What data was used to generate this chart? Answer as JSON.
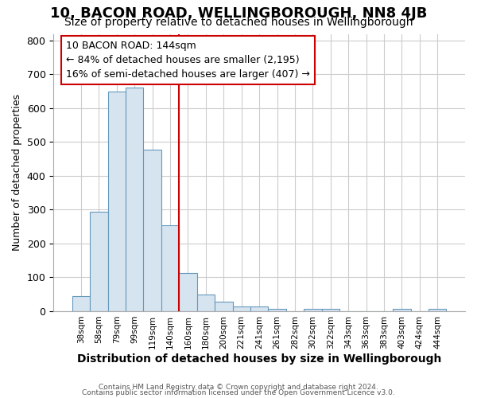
{
  "title": "10, BACON ROAD, WELLINGBOROUGH, NN8 4JB",
  "subtitle": "Size of property relative to detached houses in Wellingborough",
  "xlabel": "Distribution of detached houses by size in Wellingborough",
  "ylabel": "Number of detached properties",
  "footer_line1": "Contains HM Land Registry data © Crown copyright and database right 2024.",
  "footer_line2": "Contains public sector information licensed under the Open Government Licence v3.0.",
  "bin_labels": [
    "38sqm",
    "58sqm",
    "79sqm",
    "99sqm",
    "119sqm",
    "140sqm",
    "160sqm",
    "180sqm",
    "200sqm",
    "221sqm",
    "241sqm",
    "261sqm",
    "282sqm",
    "302sqm",
    "322sqm",
    "343sqm",
    "363sqm",
    "383sqm",
    "403sqm",
    "424sqm",
    "444sqm"
  ],
  "bar_values": [
    45,
    295,
    650,
    660,
    478,
    253,
    113,
    50,
    27,
    15,
    15,
    8,
    0,
    8,
    8,
    0,
    0,
    0,
    8,
    0,
    8
  ],
  "bar_color": "#d6e4f0",
  "bar_edge_color": "#6699bb",
  "vline_x_index": 5.5,
  "vline_color": "#cc0000",
  "annotation_line1": "10 BACON ROAD: 144sqm",
  "annotation_line2": "← 84% of detached houses are smaller (2,195)",
  "annotation_line3": "16% of semi-detached houses are larger (407) →",
  "annotation_box_color": "#ffffff",
  "annotation_box_edge_color": "#cc0000",
  "ylim": [
    0,
    820
  ],
  "yticks": [
    0,
    100,
    200,
    300,
    400,
    500,
    600,
    700,
    800
  ],
  "grid_color": "#cccccc",
  "background_color": "#ffffff",
  "plot_bg_color": "#ffffff",
  "title_fontsize": 13,
  "subtitle_fontsize": 10,
  "annotation_fontsize": 9,
  "xlabel_fontsize": 10,
  "ylabel_fontsize": 9
}
